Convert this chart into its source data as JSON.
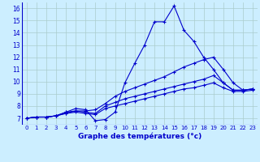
{
  "title": "Graphe des températures (°c)",
  "background_color": "#cceeff",
  "grid_color": "#aacccc",
  "line_color": "#0000cc",
  "xlim": [
    -0.5,
    23.5
  ],
  "ylim": [
    6.5,
    16.5
  ],
  "xticks": [
    0,
    1,
    2,
    3,
    4,
    5,
    6,
    7,
    8,
    9,
    10,
    11,
    12,
    13,
    14,
    15,
    16,
    17,
    18,
    19,
    20,
    21,
    22,
    23
  ],
  "yticks": [
    7,
    8,
    9,
    10,
    11,
    12,
    13,
    14,
    15,
    16
  ],
  "series": [
    [
      7.0,
      7.1,
      7.1,
      7.2,
      7.5,
      7.8,
      7.7,
      6.8,
      6.9,
      7.5,
      9.9,
      11.5,
      13.0,
      14.9,
      14.9,
      16.2,
      14.2,
      13.3,
      12.0,
      11.0,
      9.9,
      9.3,
      9.3,
      9.4
    ],
    [
      7.0,
      7.1,
      7.1,
      7.2,
      7.5,
      7.6,
      7.6,
      7.7,
      8.2,
      8.8,
      9.2,
      9.5,
      9.8,
      10.1,
      10.4,
      10.8,
      11.2,
      11.5,
      11.8,
      12.0,
      11.0,
      9.9,
      9.3,
      9.4
    ],
    [
      7.0,
      7.1,
      7.1,
      7.2,
      7.4,
      7.6,
      7.5,
      7.4,
      8.0,
      8.3,
      8.6,
      8.8,
      9.0,
      9.2,
      9.4,
      9.6,
      9.8,
      10.0,
      10.2,
      10.5,
      9.9,
      9.3,
      9.3,
      9.4
    ],
    [
      7.0,
      7.1,
      7.1,
      7.2,
      7.4,
      7.5,
      7.4,
      7.3,
      7.8,
      8.0,
      8.2,
      8.4,
      8.6,
      8.8,
      9.0,
      9.2,
      9.4,
      9.5,
      9.7,
      9.9,
      9.5,
      9.2,
      9.2,
      9.3
    ]
  ]
}
